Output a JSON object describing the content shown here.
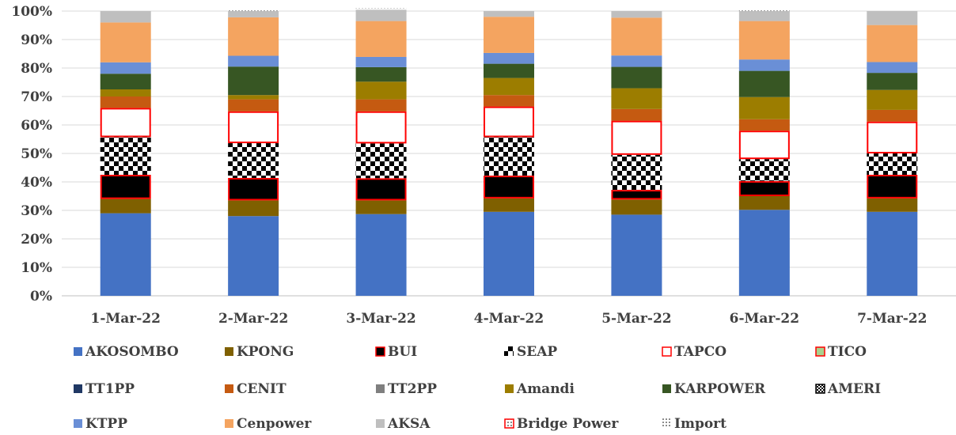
{
  "chart_data": {
    "type": "bar",
    "stacked": true,
    "percent": true,
    "categories": [
      "1-Mar-22",
      "2-Mar-22",
      "3-Mar-22",
      "4-Mar-22",
      "5-Mar-22",
      "6-Mar-22",
      "7-Mar-22"
    ],
    "y_ticks": [
      "0%",
      "10%",
      "20%",
      "30%",
      "40%",
      "50%",
      "60%",
      "70%",
      "80%",
      "90%",
      "100%"
    ],
    "ylim": [
      0,
      100
    ],
    "grid": true,
    "legend_position": "bottom",
    "series": [
      {
        "name": "AKOSOMBO",
        "color": "#4472C4",
        "style": "solid",
        "values": [
          29.0,
          28.0,
          28.7,
          29.5,
          28.5,
          30.2,
          29.5
        ]
      },
      {
        "name": "KPONG",
        "color": "#7F6000",
        "style": "solid",
        "values": [
          5.0,
          5.5,
          4.8,
          4.7,
          5.3,
          4.8,
          4.7
        ]
      },
      {
        "name": "BUI",
        "color": "#000000",
        "style": "red-outline",
        "values": [
          8.5,
          7.9,
          7.8,
          8.0,
          3.4,
          5.3,
          8.3
        ]
      },
      {
        "name": "SEAP",
        "color": "#000000",
        "style": "checker",
        "values": [
          13.2,
          12.2,
          12.2,
          13.5,
          12.3,
          7.7,
          7.5
        ]
      },
      {
        "name": "TAPCO",
        "color": "#FFFFFF",
        "style": "red-outline",
        "values": [
          10.3,
          11.2,
          11.3,
          10.8,
          12.0,
          10.0,
          11.2
        ]
      },
      {
        "name": "TICO",
        "color": "#A9D18E",
        "style": "red-outline",
        "values": [
          0,
          0,
          0,
          0,
          0,
          0,
          0
        ]
      },
      {
        "name": "TT1PP",
        "color": "#203864",
        "style": "solid",
        "values": [
          0,
          0,
          0,
          0,
          0,
          0,
          0
        ]
      },
      {
        "name": "CENIT",
        "color": "#C55A11",
        "style": "solid",
        "values": [
          4.0,
          4.2,
          4.2,
          4.0,
          4.1,
          4.0,
          4.1
        ]
      },
      {
        "name": "TT2PP",
        "color": "#7F7F7F",
        "style": "solid",
        "values": [
          0,
          0,
          0,
          0,
          0,
          0,
          0
        ]
      },
      {
        "name": "Amandi",
        "color": "#9C7D00",
        "style": "solid",
        "values": [
          2.5,
          1.5,
          6.2,
          6.0,
          7.3,
          7.8,
          7.0
        ]
      },
      {
        "name": "KARPOWER",
        "color": "#375623",
        "style": "solid",
        "values": [
          5.5,
          10.0,
          5.1,
          5.0,
          7.5,
          9.2,
          6.0
        ]
      },
      {
        "name": "AMERI",
        "color": "#000000",
        "style": "checker-outline",
        "values": [
          0,
          0,
          0,
          0,
          0,
          0,
          0
        ]
      },
      {
        "name": "KTPP",
        "color": "#6A8FD6",
        "style": "solid",
        "values": [
          4.0,
          3.8,
          3.6,
          3.8,
          4.0,
          4.0,
          3.8
        ]
      },
      {
        "name": "Cenpower",
        "color": "#F4A460",
        "style": "solid",
        "values": [
          14.0,
          13.5,
          12.6,
          12.7,
          13.3,
          13.5,
          13.0
        ]
      },
      {
        "name": "AKSA",
        "color": "#BFBFBF",
        "style": "solid",
        "values": [
          4.0,
          2.2,
          4.0,
          2.0,
          2.3,
          3.5,
          4.9
        ]
      },
      {
        "name": "Bridge Power",
        "color": "#FFFFFF",
        "style": "red-dots",
        "values": [
          0,
          0,
          0,
          0,
          0,
          0,
          0
        ]
      },
      {
        "name": "Import",
        "color": "#FFFFFF",
        "style": "dots",
        "values": [
          0.0,
          0.2,
          0.5,
          0.0,
          0.0,
          0.2,
          0.0
        ]
      }
    ]
  }
}
